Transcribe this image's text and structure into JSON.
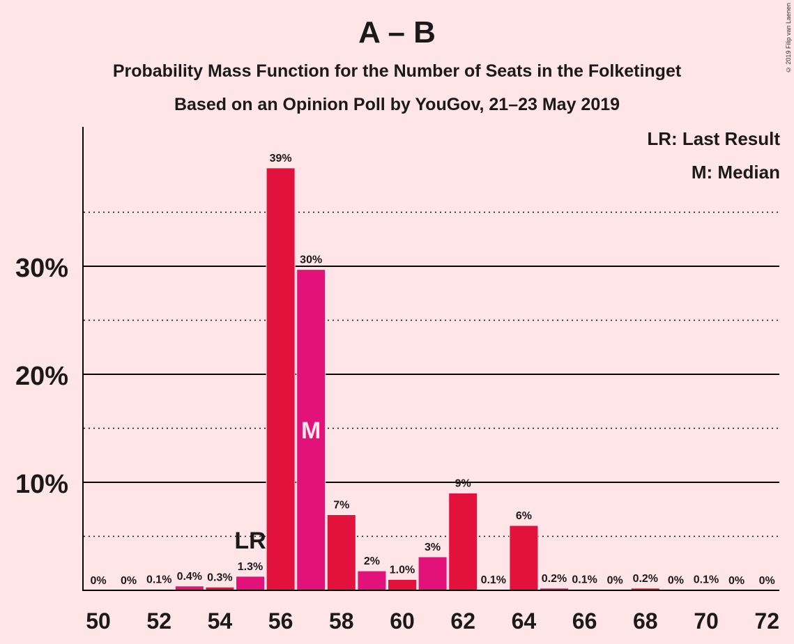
{
  "header": {
    "title": "A – B",
    "subtitle": "Probability Mass Function for the Number of Seats in the Folketinget",
    "subtitle2": "Based on an Opinion Poll by YouGov, 21–23 May 2019",
    "copyright": "© 2019 Filip van Laenen"
  },
  "legend": {
    "last_result": "LR: Last Result",
    "median": "M: Median"
  },
  "colors": {
    "background": "#FFE4E8",
    "bar_primary": "#E3123D",
    "bar_alt": "#E3127A",
    "axis": "#000000"
  },
  "chart_data": {
    "type": "bar",
    "x": [
      50,
      51,
      52,
      53,
      54,
      55,
      56,
      57,
      58,
      59,
      60,
      61,
      62,
      63,
      64,
      65,
      66,
      67,
      68,
      69,
      70,
      71,
      72
    ],
    "values": [
      0,
      0,
      0.1,
      0.4,
      0.3,
      1.3,
      39.1,
      29.7,
      7.0,
      1.8,
      1.0,
      3.1,
      9.0,
      0.05,
      6.0,
      0.2,
      0.1,
      0.02,
      0.2,
      0.02,
      0.1,
      0.01,
      0.01
    ],
    "labels": [
      "0%",
      "0%",
      "0.1%",
      "0.4%",
      "0.3%",
      "1.3%",
      "39%",
      "30%",
      "7%",
      "2%",
      "1.0%",
      "3%",
      "9%",
      "0.1%",
      "6%",
      "0.2%",
      "0.1%",
      "0%",
      "0.2%",
      "0%",
      "0.1%",
      "0%",
      "0%"
    ],
    "x_ticks": [
      "50",
      "52",
      "54",
      "56",
      "58",
      "60",
      "62",
      "64",
      "66",
      "68",
      "70",
      "72"
    ],
    "y_ticks": [
      "10%",
      "20%",
      "30%"
    ],
    "ylim": [
      0,
      43
    ],
    "grid": "solid at 10% steps, dotted at 5% offsets",
    "last_result": {
      "seat": 55,
      "label": "LR"
    },
    "median": {
      "seat": 57,
      "label": "M"
    }
  }
}
